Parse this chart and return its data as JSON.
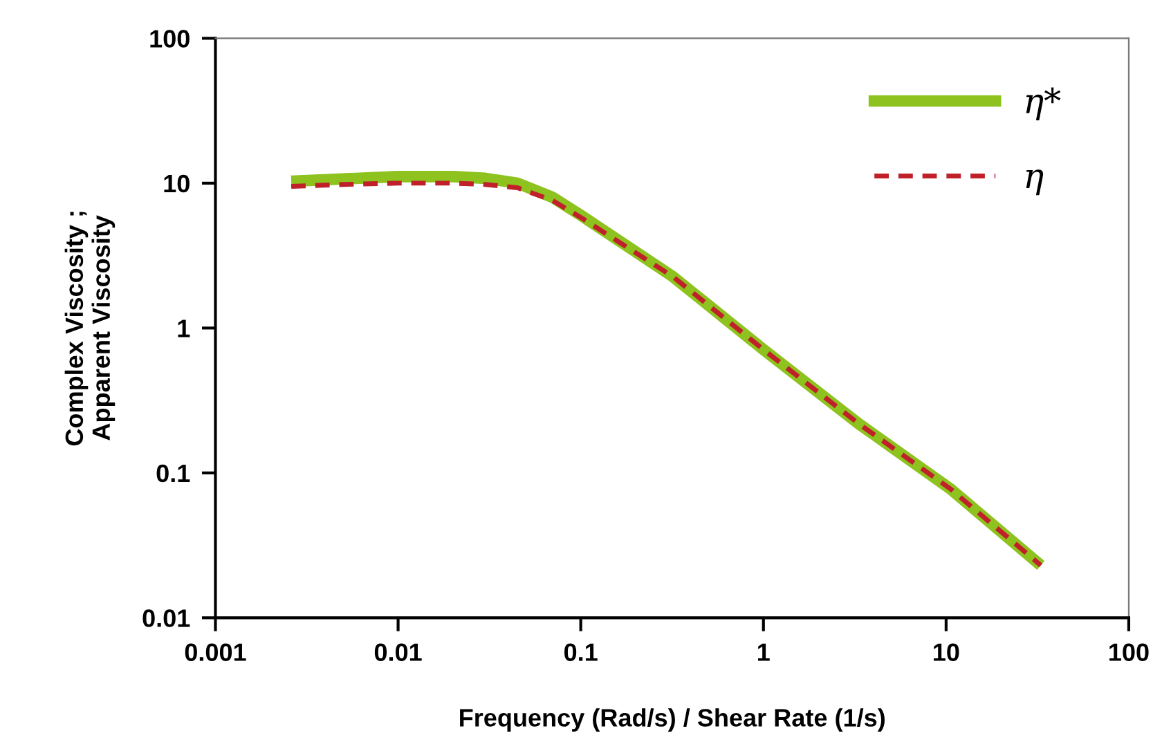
{
  "chart_data": {
    "type": "line",
    "xlabel": "Frequency (Rad/s) / Shear Rate (1/s)",
    "ylabel": "Complex Viscosity ;\nApparent Viscosity",
    "log": "xy",
    "xlim": [
      0.001,
      100
    ],
    "xticks": [
      0.001,
      0.01,
      0.1,
      1,
      10,
      100
    ],
    "ylim": [
      0.01,
      100
    ],
    "yticks": [
      0.01,
      0.1,
      1,
      10,
      100
    ],
    "grid": false,
    "legend": "top right",
    "marker": "none",
    "series": [
      {
        "name": "η*",
        "color": "#8dc21f",
        "line_style": "solid",
        "x": [
          0.0026,
          0.005,
          0.01,
          0.02,
          0.03,
          0.045,
          0.07,
          0.1,
          0.32,
          1,
          3.3,
          10.5,
          33
        ],
        "values": [
          10.3,
          10.7,
          11.1,
          11.1,
          10.8,
          10.0,
          8.0,
          6.0,
          2.26,
          0.71,
          0.22,
          0.078,
          0.023
        ]
      },
      {
        "name": "η",
        "color": "#c0202a",
        "line_style": "dashed",
        "x": [
          0.0026,
          0.005,
          0.01,
          0.02,
          0.03,
          0.045,
          0.07,
          0.1,
          0.32,
          1,
          3.3,
          10.5,
          33
        ],
        "values": [
          9.5,
          9.8,
          10.0,
          10.0,
          9.8,
          9.3,
          7.6,
          5.8,
          2.26,
          0.71,
          0.22,
          0.078,
          0.023
        ]
      }
    ]
  }
}
